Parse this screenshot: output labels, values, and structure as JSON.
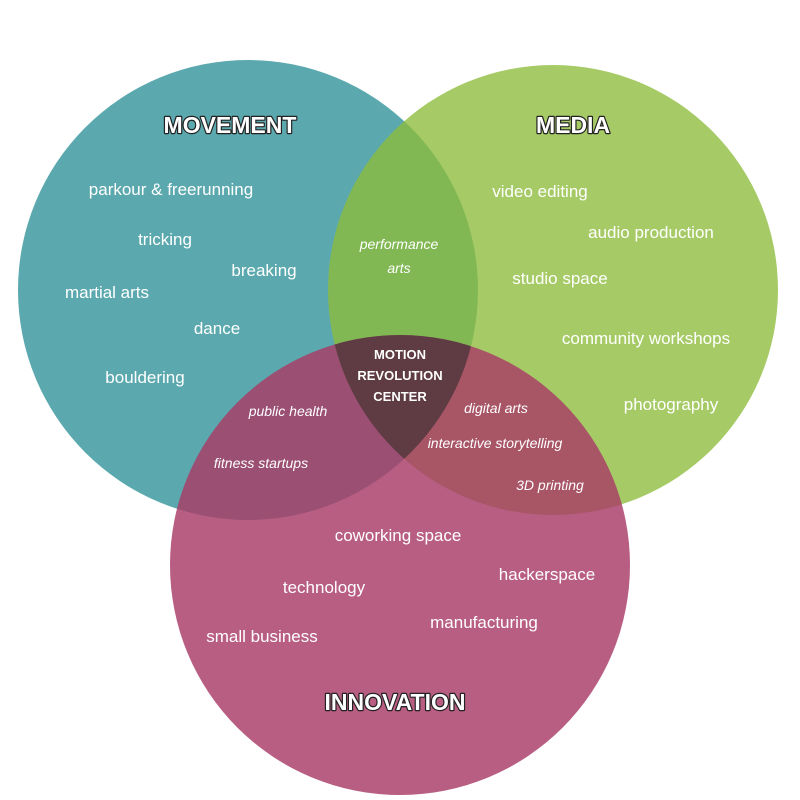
{
  "sets": {
    "movement": {
      "title": "MOVEMENT",
      "color": "#4fa3a8",
      "items": [
        "parkour & freerunning",
        "tricking",
        "breaking",
        "martial arts",
        "dance",
        "bouldering"
      ]
    },
    "media": {
      "title": "MEDIA",
      "color": "#8dbd3b",
      "items": [
        "video editing",
        "audio production",
        "studio space",
        "community workshops",
        "photography"
      ]
    },
    "innovation": {
      "title": "INNOVATION",
      "color": "#a83a66",
      "items": [
        "coworking space",
        "technology",
        "hackerspace",
        "small business",
        "manufacturing"
      ]
    }
  },
  "overlaps": {
    "movement_media": [
      "performance",
      "arts"
    ],
    "movement_innovation": [
      "public health",
      "fitness startups"
    ],
    "media_innovation": [
      "digital arts",
      "interactive storytelling",
      "3D printing"
    ]
  },
  "center": {
    "lines": [
      "MOTION",
      "REVOLUTION",
      "CENTER"
    ]
  }
}
